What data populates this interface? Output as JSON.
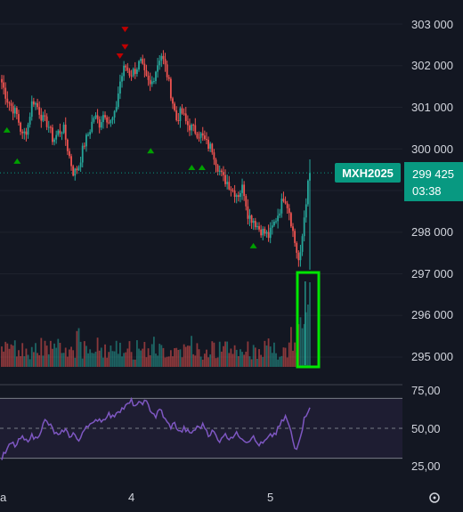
{
  "chart_data": {
    "type": "candlestick",
    "symbol": "MXH2025",
    "last_price": "299 425",
    "countdown": "03:38",
    "price_axis": {
      "range": [
        294800,
        303200
      ],
      "ticks": [
        "303 000",
        "302 000",
        "301 000",
        "300 000",
        "298 000",
        "297 000",
        "296 000",
        "295 000"
      ]
    },
    "time_axis": {
      "labels": [
        "a",
        "4",
        "5"
      ]
    },
    "rsi": {
      "range": [
        20,
        80
      ],
      "ticks": [
        "75,00",
        "50,00",
        "25,00"
      ],
      "upper_band": 70,
      "mid_line": 50,
      "lower_band": 30
    },
    "colors": {
      "up": "#26a69a",
      "down": "#ef5350",
      "rsi_line": "#7e57c2",
      "highlight_box": "#00e600",
      "last_price_tag": "#089981",
      "buy_marker": "#00a000",
      "sell_marker": "#c00000"
    },
    "candle_anchors": [
      301600,
      301200,
      301000,
      300800,
      300300,
      300500,
      301200,
      301000,
      300700,
      300600,
      300200,
      300400,
      300500,
      299900,
      299400,
      299600,
      300100,
      300400,
      300800,
      300600,
      300900,
      300600,
      300800,
      301600,
      302000,
      301800,
      301900,
      302100,
      301700,
      301500,
      301900,
      302300,
      301900,
      301300,
      300700,
      300900,
      300600,
      300500,
      300400,
      300300,
      300100,
      300000,
      299600,
      299300,
      299200,
      299000,
      298900,
      299100,
      298400,
      298300,
      298100,
      298000,
      297900,
      298200,
      298500,
      298900,
      298500,
      297800,
      297200,
      298500,
      299500
    ],
    "rsi_anchors": [
      30,
      35,
      40,
      38,
      44,
      41,
      45,
      43,
      48,
      55,
      52,
      47,
      44,
      50,
      45,
      47,
      40,
      50,
      53,
      52,
      57,
      55,
      60,
      57,
      62,
      63,
      65,
      68,
      64,
      68,
      67,
      62,
      58,
      63,
      55,
      51,
      53,
      47,
      50,
      46,
      49,
      51,
      52,
      46,
      48,
      41,
      46,
      44,
      45,
      46,
      44,
      41,
      45,
      40,
      39,
      42,
      45,
      47,
      53,
      58,
      48,
      35,
      45,
      58,
      65
    ],
    "buy_markers": [
      {
        "index": 1,
        "price": 300650
      },
      {
        "index": 3,
        "price": 299900
      },
      {
        "index": 29,
        "price": 300150
      },
      {
        "index": 37,
        "price": 299750
      },
      {
        "index": 39,
        "price": 299750
      },
      {
        "index": 49,
        "price": 297870
      }
    ],
    "sell_markers": [
      {
        "index": 23,
        "price": 302080
      },
      {
        "index": 24,
        "price": 302300
      },
      {
        "index": 24,
        "price": 302720
      }
    ]
  }
}
